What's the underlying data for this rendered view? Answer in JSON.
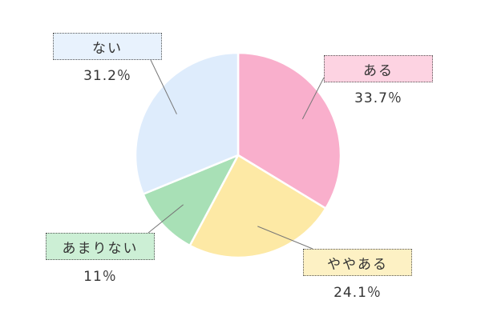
{
  "chart_data": {
    "type": "pie",
    "start": "12 o'clock",
    "direction": "clockwise",
    "slices": [
      {
        "label": "ある",
        "value": 33.7,
        "value_label": "33.7％",
        "color": "#f9afcc",
        "label_bg": "#fdd3e2"
      },
      {
        "label": "ややある",
        "value": 24.1,
        "value_label": "24.1％",
        "color": "#fde9a5",
        "label_bg": "#fdf1c4"
      },
      {
        "label": "あまりない",
        "value": 11,
        "value_label": "11％",
        "color": "#a8e0b6",
        "label_bg": "#ccefd5"
      },
      {
        "label": "ない",
        "value": 31.2,
        "value_label": "31.2％",
        "color": "#deecfc",
        "label_bg": "#e8f2fd"
      }
    ]
  }
}
